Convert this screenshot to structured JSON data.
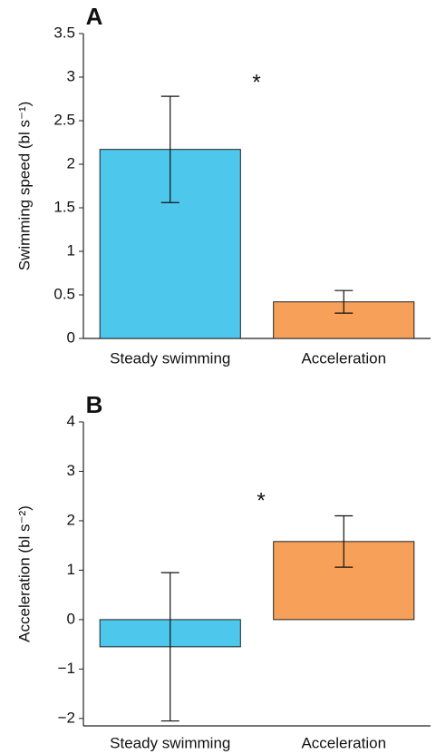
{
  "chart_data": [
    {
      "type": "bar",
      "panel": "A",
      "ylabel": "Swimming speed (bl s⁻¹)",
      "categories": [
        "Steady swimming",
        "Acceleration"
      ],
      "values": [
        2.17,
        0.42
      ],
      "errors": [
        0.61,
        0.13
      ],
      "colors": [
        "#4dc8ec",
        "#f7a05a"
      ],
      "ylim": [
        0,
        3.5
      ],
      "yticks": [
        0,
        0.5,
        1,
        1.5,
        2,
        2.5,
        3,
        3.5
      ],
      "annotation": "*"
    },
    {
      "type": "bar",
      "panel": "B",
      "ylabel": "Acceleration (bl s⁻²)",
      "categories": [
        "Steady swimming",
        "Acceleration"
      ],
      "values": [
        -0.55,
        1.58
      ],
      "errors": [
        1.5,
        0.52
      ],
      "colors": [
        "#4dc8ec",
        "#f7a05a"
      ],
      "ylim": [
        -2.15,
        4
      ],
      "yticks": [
        {
          "value": -2,
          "label": "−2"
        },
        {
          "value": -1,
          "label": "−1"
        },
        0,
        1,
        2,
        3,
        4
      ],
      "annotation": "*"
    }
  ]
}
